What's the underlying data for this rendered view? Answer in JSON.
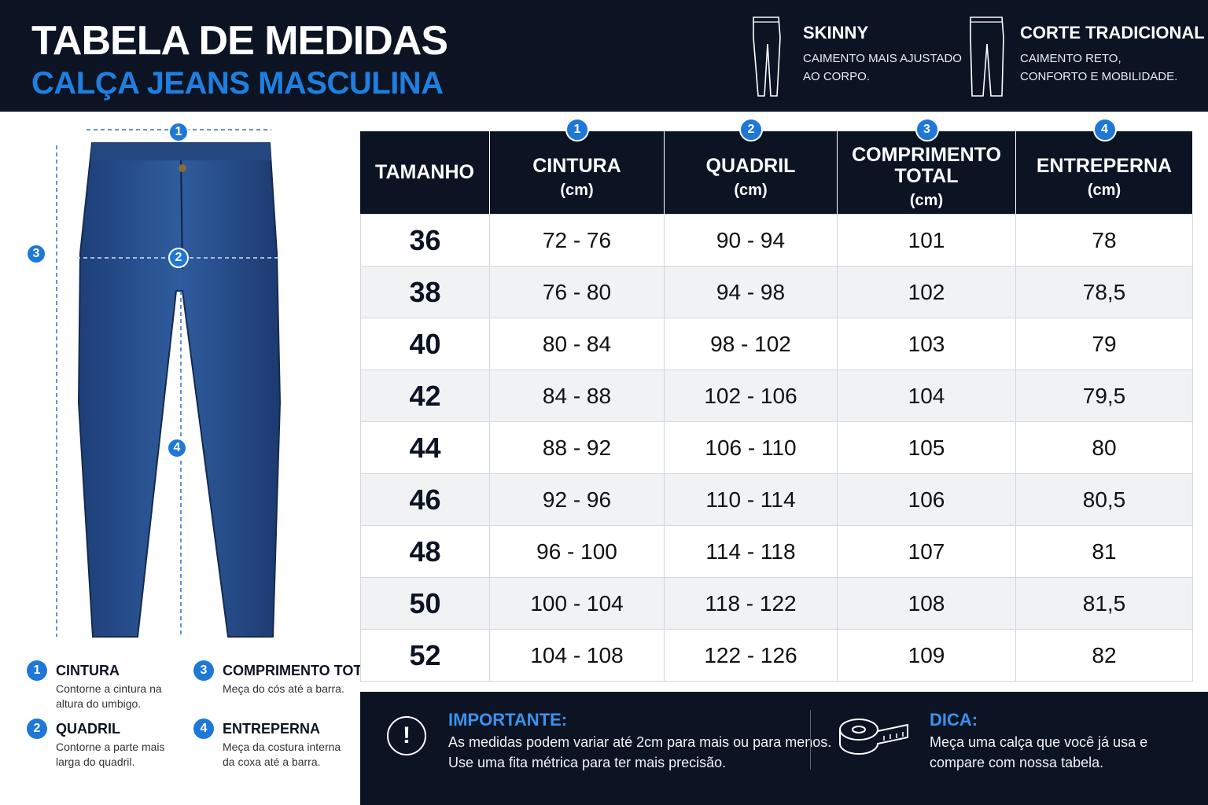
{
  "header": {
    "title": "TABELA DE MEDIDAS",
    "subtitle": "CALÇA JEANS MASCULINA"
  },
  "fits": [
    {
      "name": "SKINNY",
      "lines": [
        "CAIMENTO MAIS AJUSTADO",
        "AO CORPO."
      ]
    },
    {
      "name": "CORTE TRADICIONAL",
      "lines": [
        "CAIMENTO RETO,",
        "CONFORTO E MOBILIDADE."
      ]
    }
  ],
  "diagram": {
    "markers": [
      "1",
      "2",
      "3",
      "4"
    ]
  },
  "legend": {
    "items": [
      {
        "number": "1",
        "title": "CINTURA",
        "lines": [
          "Contorne a cintura na",
          "altura do umbigo."
        ]
      },
      {
        "number": "3",
        "title": "COMPRIMENTO TOTAL",
        "lines": [
          "Meça do cós até a barra."
        ]
      },
      {
        "number": "2",
        "title": "QUADRIL",
        "lines": [
          "Contorne a parte mais",
          "larga do quadril."
        ]
      },
      {
        "number": "4",
        "title": "ENTREPERNA",
        "lines": [
          "Meça da costura interna",
          "da coxa até a barra."
        ]
      }
    ]
  },
  "table": {
    "columns": [
      {
        "label": [
          "TAMANHO"
        ]
      },
      {
        "number": "1",
        "label": [
          "CINTURA"
        ],
        "unit": "(cm)"
      },
      {
        "number": "2",
        "label": [
          "QUADRIL"
        ],
        "unit": "(cm)"
      },
      {
        "number": "3",
        "label": [
          "COMPRIMENTO",
          "TOTAL"
        ],
        "unit": "(cm)"
      },
      {
        "number": "4",
        "label": [
          "ENTREPERNA"
        ],
        "unit": "(cm)"
      }
    ],
    "rows": [
      [
        "36",
        "72 - 76",
        "90 - 94",
        "101",
        "78"
      ],
      [
        "38",
        "76 - 80",
        "94 - 98",
        "102",
        "78,5"
      ],
      [
        "40",
        "80 - 84",
        "98 - 102",
        "103",
        "79"
      ],
      [
        "42",
        "84 - 88",
        "102 - 106",
        "104",
        "79,5"
      ],
      [
        "44",
        "88 - 92",
        "106 - 110",
        "105",
        "80"
      ],
      [
        "46",
        "92 - 96",
        "110 - 114",
        "106",
        "80,5"
      ],
      [
        "48",
        "96 - 100",
        "114 - 118",
        "107",
        "81"
      ],
      [
        "50",
        "100 - 104",
        "118 - 122",
        "108",
        "81,5"
      ],
      [
        "52",
        "104 - 108",
        "122 - 126",
        "109",
        "82"
      ]
    ]
  },
  "notes": {
    "important": {
      "icon": "!",
      "title": "IMPORTANTE:",
      "lines": [
        "As medidas podem variar até 2cm para mais ou para menos.",
        "Use uma fita métrica para ter mais precisão."
      ]
    },
    "tip": {
      "title": "DICA:",
      "lines": [
        "Meça uma calça que você já usa e",
        "compare com nossa tabela."
      ]
    }
  }
}
